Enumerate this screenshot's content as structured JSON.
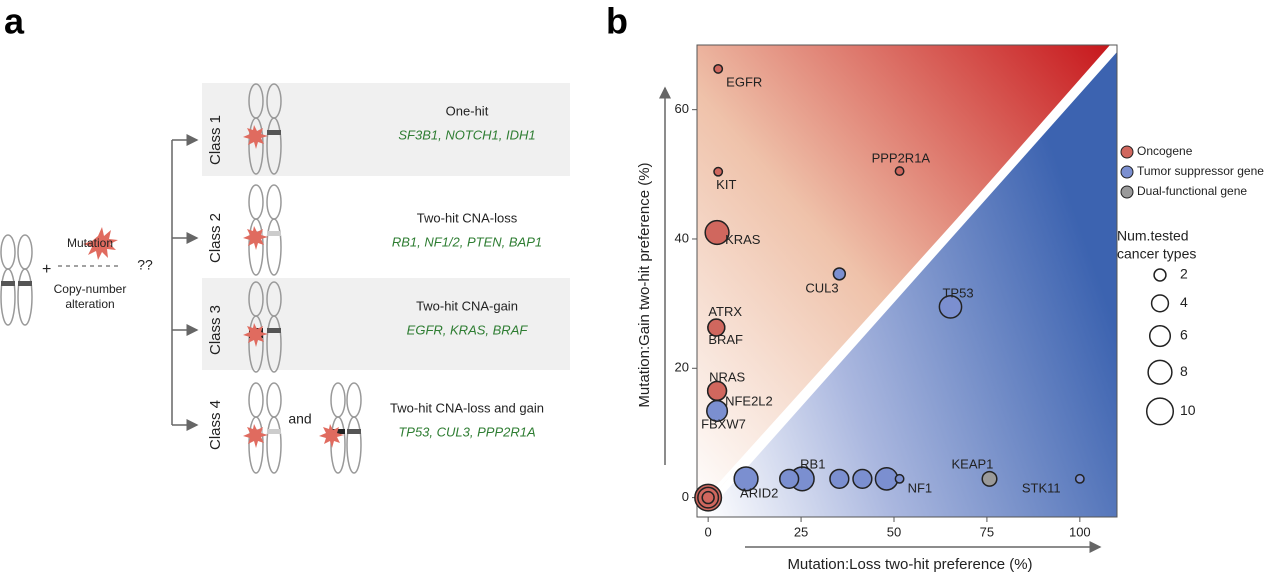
{
  "panel_a": {
    "label": "a",
    "mutation": "Mutation",
    "plus": "+",
    "question": "??",
    "cna": [
      "Copy-number",
      "alteration"
    ],
    "and": "and",
    "classes": [
      {
        "name": "Class 1",
        "title": "One-hit",
        "genes": "SF3B1, NOTCH1, IDH1"
      },
      {
        "name": "Class 2",
        "title": "Two-hit CNA-loss",
        "genes": "RB1, NF1/2, PTEN, BAP1"
      },
      {
        "name": "Class 3",
        "title": "Two-hit CNA-gain",
        "genes": "EGFR, KRAS, BRAF"
      },
      {
        "name": "Class 4",
        "title": "Two-hit CNA-loss and gain",
        "genes": "TP53, CUL3, PPP2R1A"
      }
    ]
  },
  "chart_data": {
    "type": "scatter",
    "panel_label": "b",
    "x_label": "Mutation:Loss two-hit preference (%)",
    "y_label": "Mutation:Gain two-hit preference (%)",
    "xlim": [
      -3,
      110
    ],
    "ylim": [
      -3,
      70
    ],
    "xticks": [
      0,
      25,
      50,
      75,
      100
    ],
    "yticks": [
      0,
      20,
      40,
      60
    ],
    "series": [
      {
        "name": "Oncogene",
        "color": "#d0675e",
        "x": [
          2.7,
          2.7,
          51.5,
          2.4,
          2.2,
          2.2,
          2.4,
          2.4,
          0,
          0,
          0
        ],
        "y": [
          66.3,
          50.4,
          50.5,
          41,
          26.3,
          26.3,
          16.5,
          16.5,
          0,
          0,
          0
        ],
        "size": [
          1,
          1,
          1,
          8,
          4,
          4,
          5,
          5,
          10,
          6,
          2
        ],
        "labels": [
          "EGFR",
          "KIT",
          "PPP2R1A",
          "KRAS",
          "ATRX",
          "BRAF",
          "NRAS",
          "NFE2L2",
          null,
          null,
          null
        ]
      },
      {
        "name": "Tumor suppressor gene",
        "color": "#7b8fd0",
        "x": [
          35.3,
          65.2,
          2.4,
          10.2,
          25.3,
          21.8,
          35.3,
          41.5,
          48,
          51.5,
          100
        ],
        "y": [
          34.6,
          29.5,
          13.4,
          2.9,
          2.9,
          2.9,
          2.9,
          2.9,
          2.9,
          2.9,
          2.9
        ],
        "size": [
          2,
          7,
          6,
          8,
          8,
          5,
          5,
          5,
          7,
          1,
          1
        ],
        "labels": [
          "CUL3",
          "TP53",
          "FBXW7",
          "ARID2",
          "RB1",
          null,
          null,
          null,
          null,
          "NF1",
          "STK11"
        ]
      },
      {
        "name": "Dual-functional gene",
        "color": "#9a9a9a",
        "x": [
          75.7
        ],
        "y": [
          2.9
        ],
        "size": [
          3
        ],
        "labels": [
          "KEAP1"
        ]
      }
    ],
    "size_legend": {
      "title": [
        "Num.tested",
        "cancer types"
      ],
      "values": [
        2,
        4,
        6,
        8,
        10
      ]
    }
  }
}
